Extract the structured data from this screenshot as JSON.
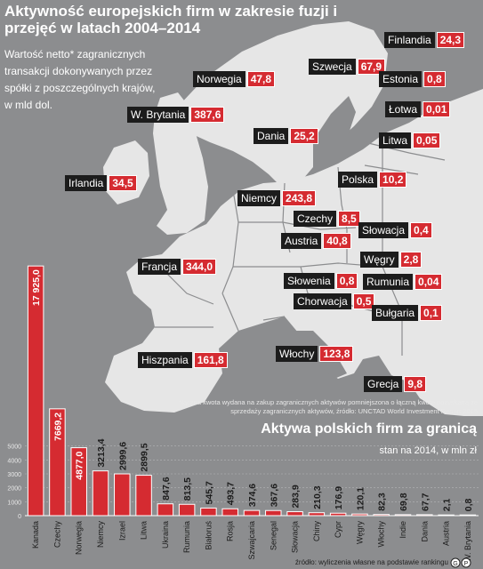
{
  "title": "Aktywność europejskich firm w zakresie fuzji i przejęć w latach 2004–2014",
  "subtitle": "Wartość netto* zagranicznych transakcji dokonywanych przez spółki z poszczególnych krajów, w mld dol.",
  "map_labels": [
    {
      "name": "Finlandia",
      "value": "24,3"
    },
    {
      "name": "Szwecja",
      "value": "67,9"
    },
    {
      "name": "Norwegia",
      "value": "47,8"
    },
    {
      "name": "Estonia",
      "value": "0,8"
    },
    {
      "name": "W. Brytania",
      "value": "387,6"
    },
    {
      "name": "Łotwa",
      "value": "0,01"
    },
    {
      "name": "Dania",
      "value": "25,2"
    },
    {
      "name": "Litwa",
      "value": "0,05"
    },
    {
      "name": "Irlandia",
      "value": "34,5"
    },
    {
      "name": "Polska",
      "value": "10,2"
    },
    {
      "name": "Niemcy",
      "value": "243,8"
    },
    {
      "name": "Czechy",
      "value": "8,5"
    },
    {
      "name": "Słowacja",
      "value": "0,4"
    },
    {
      "name": "Austria",
      "value": "40,8"
    },
    {
      "name": "Węgry",
      "value": "2,8"
    },
    {
      "name": "Francja",
      "value": "344,0"
    },
    {
      "name": "Słowenia",
      "value": "0,8"
    },
    {
      "name": "Rumunia",
      "value": "0,04"
    },
    {
      "name": "Chorwacja",
      "value": "0,5"
    },
    {
      "name": "Bułgaria",
      "value": "0,1"
    },
    {
      "name": "Hiszpania",
      "value": "161,8"
    },
    {
      "name": "Włochy",
      "value": "123,8"
    },
    {
      "name": "Grecja",
      "value": "9,8"
    }
  ],
  "footnote": "*łączna kwota wydana na zakup zagranicznych aktywów pomniejszona o łączną kwotę pozyskaną ze sprzedaży zagranicznych aktywów, źródło: UNCTAD World Investment Report 2015",
  "chart_data": {
    "type": "bar",
    "title": "Aktywa polskich firm za granicą",
    "subtitle": "stan na 2014, w mln zł",
    "categories": [
      "Kanada",
      "Czechy",
      "Norwegia",
      "Niemcy",
      "Izrael",
      "Litwa",
      "Ukraina",
      "Rumunia",
      "Białoruś",
      "Rosja",
      "Szwajcaria",
      "Senegal",
      "Słowacja",
      "Chiny",
      "Cypr",
      "Węgry",
      "Włochy",
      "Indie",
      "Dania",
      "Austria",
      "W. Brytania"
    ],
    "values": [
      17925.0,
      7669.2,
      4877.0,
      3213.4,
      2999.6,
      2899.5,
      847.6,
      813.5,
      545.7,
      493.7,
      374.6,
      367.6,
      283.9,
      210.3,
      176.9,
      120.1,
      82.3,
      69.8,
      67.7,
      2.1,
      0.8
    ],
    "value_labels": [
      "17 925,0",
      "7669,2",
      "4877,0",
      "3213,4",
      "2999,6",
      "2899,5",
      "847,6",
      "813,5",
      "545,7",
      "493,7",
      "374,6",
      "367,6",
      "283,9",
      "210,3",
      "176,9",
      "120,1",
      "82,3",
      "69,8",
      "67,7",
      "2,1",
      "0,8"
    ],
    "yticks": [
      "0",
      "1000",
      "2000",
      "3000",
      "4000",
      "5000"
    ],
    "tick_values": [
      0,
      1000,
      2000,
      3000,
      4000,
      5000
    ],
    "ylim": [
      0,
      18000
    ],
    "grid": true,
    "colors": {
      "bar": "#d52b31",
      "bar_stroke": "#ffffff"
    }
  },
  "source": "źródło: wyliczenia własne na podstawie rankingu",
  "colors": {
    "background": "#8c8d8f",
    "land": "#e6e6e6",
    "accent": "#d52b31",
    "label_bg": "#1c1c1c"
  }
}
